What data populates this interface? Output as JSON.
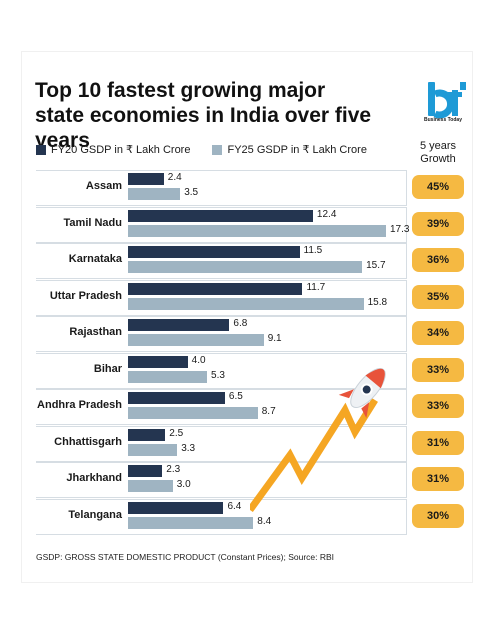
{
  "header": {
    "title": "Top 10 fastest growing major state economies in India over five years",
    "logo_text": "Business Today",
    "growth_header": "5 years Growth"
  },
  "colors": {
    "fy20": "#243550",
    "fy25": "#9fb4c2",
    "growth_pill": "#f5b942",
    "rocket_accent": "#e8533a",
    "zigzag": "#f5a623",
    "logo_blue": "#1e9ad6"
  },
  "legend": {
    "fy20": "FY20 GSDP in ₹ Lakh Crore",
    "fy25": "FY25 GSDP in ₹ Lakh Crore"
  },
  "footnote": "GSDP: GROSS STATE DOMESTIC PRODUCT (Constant Prices); Source: RBI",
  "chart_data": {
    "type": "bar",
    "title": "Top 10 fastest growing major state economies in India over five years",
    "categories": [
      "Assam",
      "Tamil Nadu",
      "Karnataka",
      "Uttar Pradesh",
      "Rajasthan",
      "Bihar",
      "Andhra Pradesh",
      "Chhattisgarh",
      "Jharkhand",
      "Telangana"
    ],
    "series": [
      {
        "name": "FY20 GSDP in ₹ Lakh Crore",
        "values": [
          2.4,
          12.4,
          11.5,
          11.7,
          6.8,
          4.0,
          6.5,
          2.5,
          2.3,
          6.4
        ]
      },
      {
        "name": "FY25 GSDP in ₹ Lakh Crore",
        "values": [
          3.5,
          17.3,
          15.7,
          15.8,
          9.1,
          5.3,
          8.7,
          3.3,
          3.0,
          8.4
        ]
      }
    ],
    "value_labels": {
      "fy20": [
        "2.4",
        "12.4",
        "11.5",
        "11.7",
        "6.8",
        "4.0",
        "6.5",
        "2.5",
        "2.3",
        "6.4"
      ],
      "fy25": [
        "3.5",
        "17.3",
        "15.7",
        "15.8",
        "9.1",
        "5.3",
        "8.7",
        "3.3",
        "3.0",
        "8.4"
      ]
    },
    "growth": [
      "45%",
      "39%",
      "36%",
      "35%",
      "34%",
      "33%",
      "33%",
      "31%",
      "31%",
      "30%"
    ],
    "orientation": "horizontal",
    "xlim": [
      0,
      17.3
    ],
    "legend_position": "top-left",
    "grid": false
  }
}
